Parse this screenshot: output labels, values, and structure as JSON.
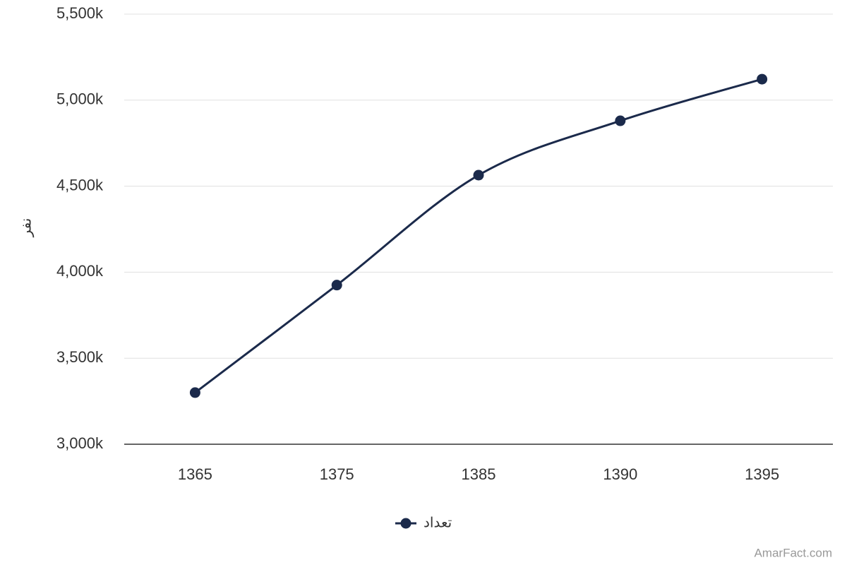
{
  "chart_data": {
    "type": "line",
    "y_label": "نفر",
    "categories": [
      "1365",
      "1375",
      "1385",
      "1390",
      "1395"
    ],
    "series": [
      {
        "name": "تعداد",
        "color": "#1b2a4b",
        "values": [
          3300000,
          3925000,
          4564000,
          4880000,
          5122000
        ]
      }
    ],
    "ylim": [
      3000000,
      5500000
    ],
    "yticks": [
      {
        "value": 3000000,
        "label": "3,000k"
      },
      {
        "value": 3500000,
        "label": "3,500k"
      },
      {
        "value": 4000000,
        "label": "4,000k"
      },
      {
        "value": 4500000,
        "label": "4,500k"
      },
      {
        "value": 5000000,
        "label": "5,000k"
      },
      {
        "value": 5500000,
        "label": "5,500k"
      }
    ],
    "grid": true,
    "smooth": true,
    "legend": "bottom",
    "credit": "AmarFact.com"
  }
}
